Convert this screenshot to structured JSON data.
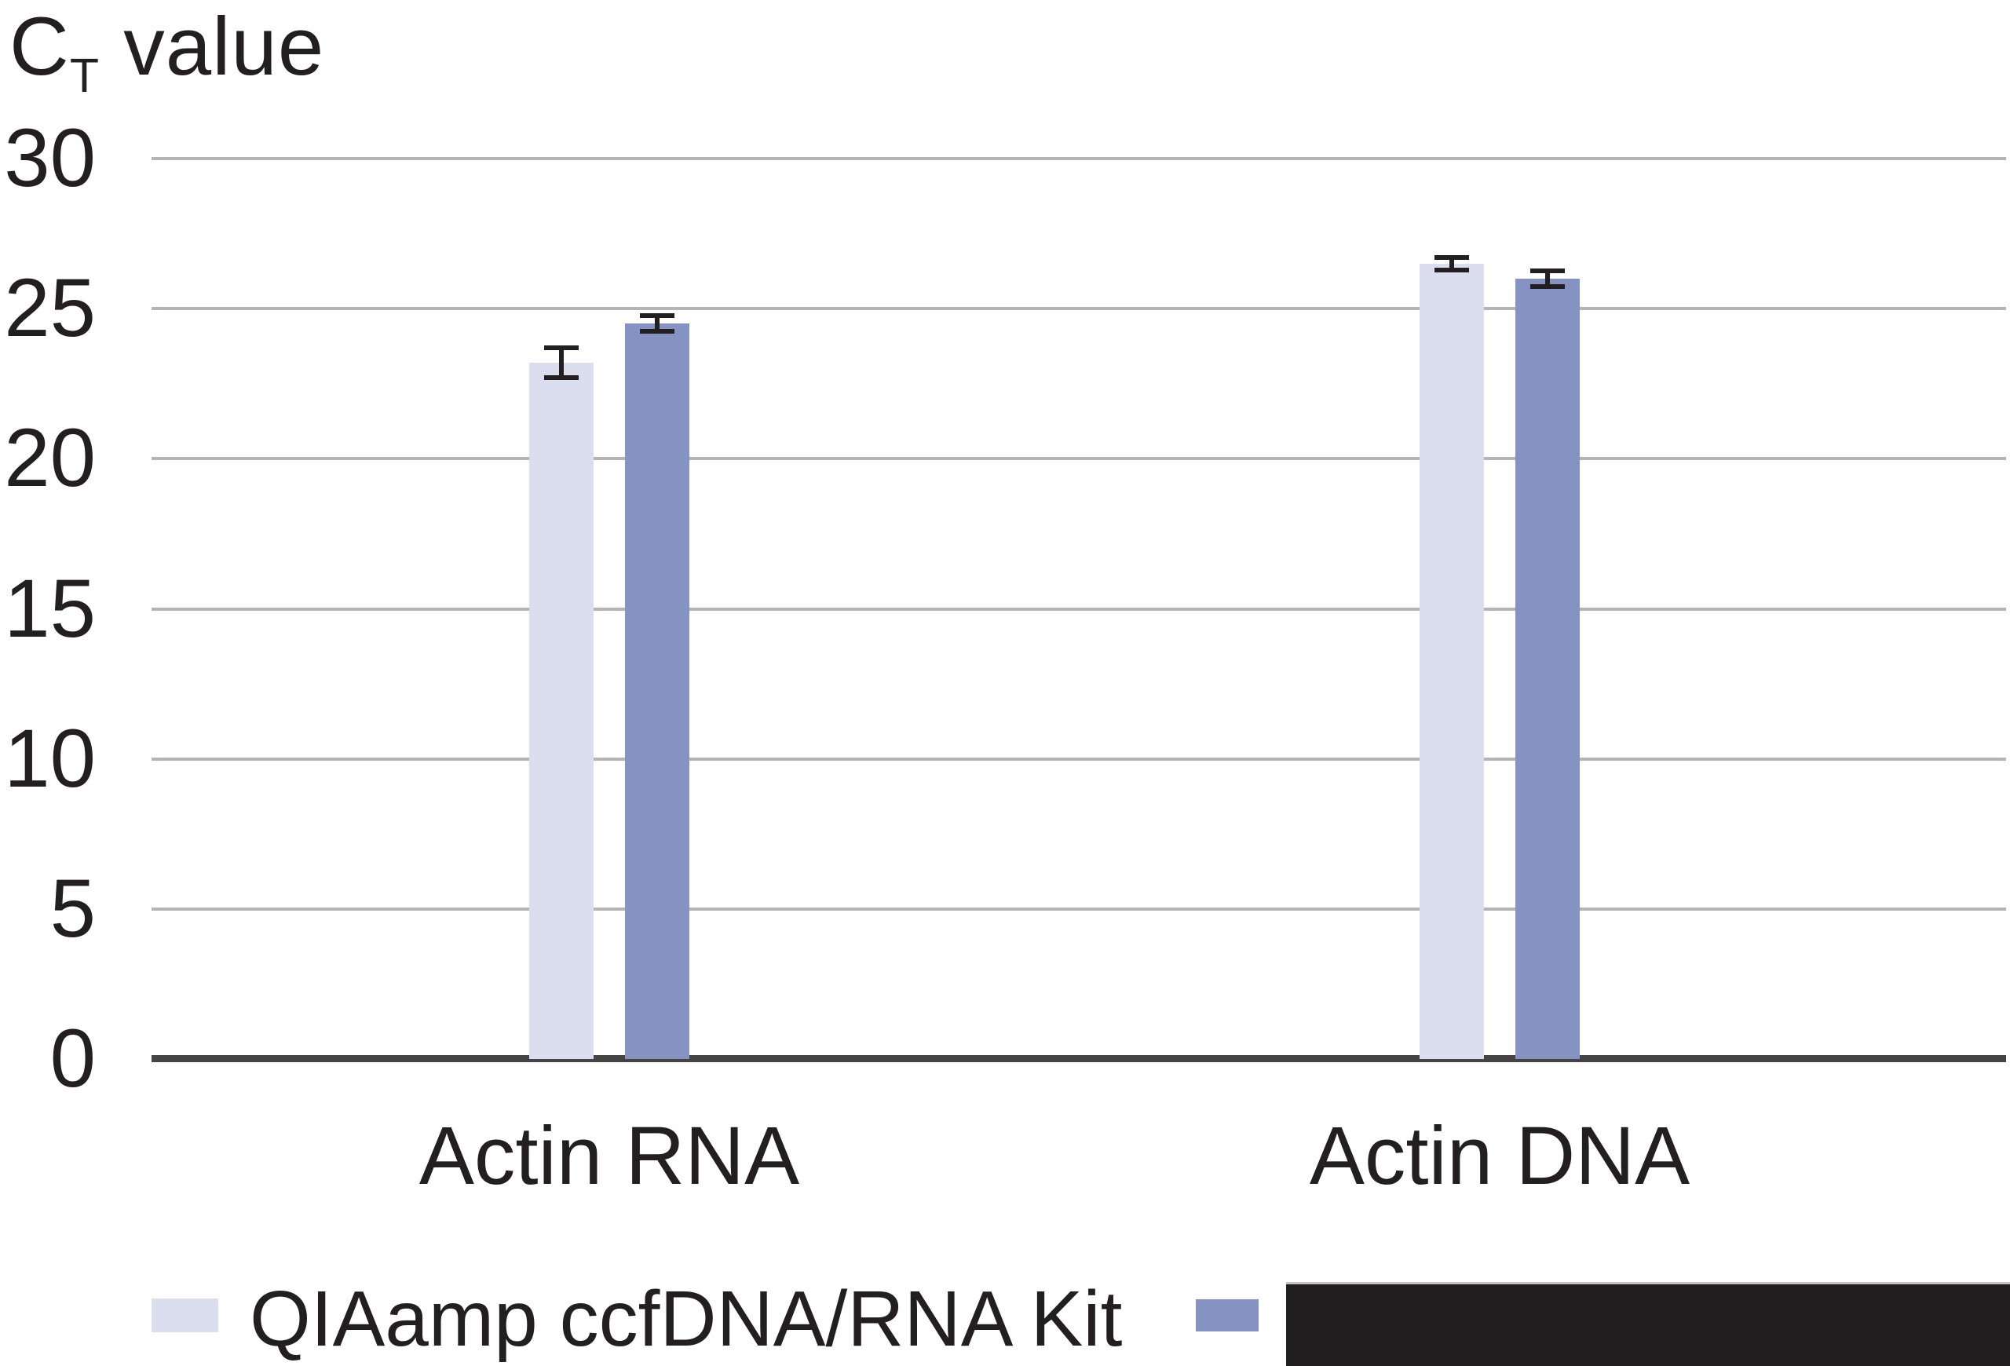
{
  "chart_data": {
    "type": "bar",
    "title": {
      "prefix": "C",
      "subscript": "T",
      "rest": " value"
    },
    "ylabel": "CT value",
    "categories": [
      "Actin RNA",
      "Actin DNA"
    ],
    "series": [
      {
        "name": "QIAamp ccfDNA/RNA Kit",
        "values": [
          23.2,
          26.5
        ],
        "errors": [
          0.45,
          0.17
        ],
        "color": "#dbdeee",
        "redacted": false
      },
      {
        "name": "",
        "values": [
          24.5,
          26.0
        ],
        "errors": [
          0.21,
          0.2
        ],
        "color": "#8593c2",
        "redacted": true
      }
    ],
    "ylim": [
      0,
      30
    ],
    "yticks": [
      0,
      5,
      10,
      15,
      20,
      25,
      30
    ],
    "grid": true,
    "legend_position": "bottom"
  },
  "colors": {
    "text": "#231f20",
    "gridline": "#b5b3b3",
    "axis": "#464344",
    "error_bar": "#231f20",
    "redaction_box": "#211e1f",
    "background": "#ffffff"
  }
}
